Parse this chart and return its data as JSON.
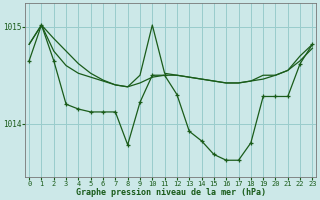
{
  "title": "Graphe pression niveau de la mer (hPa)",
  "background_color": "#cce8e8",
  "grid_color": "#99cccc",
  "line_color": "#1a5c1a",
  "xlim": [
    -0.3,
    23.3
  ],
  "ylim": [
    1013.45,
    1015.25
  ],
  "yticks": [
    1014,
    1015
  ],
  "xticks": [
    0,
    1,
    2,
    3,
    4,
    5,
    6,
    7,
    8,
    9,
    10,
    11,
    12,
    13,
    14,
    15,
    16,
    17,
    18,
    19,
    20,
    21,
    22,
    23
  ],
  "line1": [
    1014.82,
    1015.02,
    1014.88,
    1014.75,
    1014.62,
    1014.52,
    1014.45,
    1014.4,
    1014.38,
    1014.42,
    1014.48,
    1014.5,
    1014.5,
    1014.48,
    1014.46,
    1014.44,
    1014.42,
    1014.42,
    1014.44,
    1014.46,
    1014.5,
    1014.55,
    1014.65,
    1014.78
  ],
  "line2": [
    1014.82,
    1015.02,
    1014.75,
    1014.6,
    1014.52,
    1014.48,
    1014.44,
    1014.4,
    1014.38,
    1014.5,
    1015.02,
    1014.52,
    1014.5,
    1014.48,
    1014.46,
    1014.44,
    1014.42,
    1014.42,
    1014.44,
    1014.5,
    1014.5,
    1014.55,
    1014.7,
    1014.82
  ],
  "line3": [
    1014.65,
    1015.02,
    1014.65,
    1014.2,
    1014.15,
    1014.12,
    1014.12,
    1014.12,
    1013.78,
    1014.22,
    1014.5,
    1014.5,
    1014.3,
    1013.92,
    1013.82,
    1013.68,
    1013.62,
    1013.62,
    1013.8,
    1014.28,
    1014.28,
    1014.28,
    1014.62,
    1014.82
  ]
}
